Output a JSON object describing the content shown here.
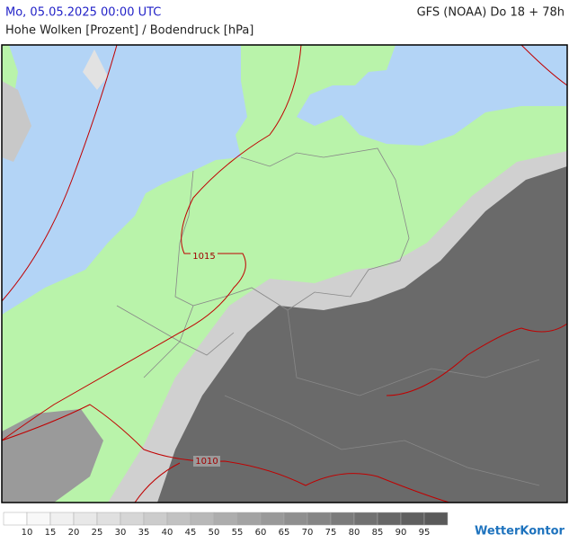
{
  "header": {
    "date": "Mo, 05.05.2025 00:00 UTC",
    "model": "GFS (NOAA) Do 18 + 78h",
    "subtitle": "Hohe Wolken [Prozent] / Bodendruck [hPa]"
  },
  "isobars": [
    {
      "label": "1015"
    },
    {
      "label": "1010"
    }
  ],
  "legend": {
    "ticks": [
      10,
      15,
      20,
      25,
      30,
      35,
      40,
      45,
      50,
      55,
      60,
      65,
      70,
      75,
      80,
      85,
      90,
      95
    ],
    "colors": [
      "#ffffff",
      "#f8f8f8",
      "#f0f0f0",
      "#e8e8e8",
      "#e0e0e0",
      "#d6d6d6",
      "#cccccc",
      "#c2c2c2",
      "#b8b8b8",
      "#adadad",
      "#a3a3a3",
      "#999999",
      "#8f8f8f",
      "#858585",
      "#7b7b7b",
      "#717171",
      "#676767",
      "#606060",
      "#5a5a5a"
    ]
  },
  "logo": "WetterKontor"
}
